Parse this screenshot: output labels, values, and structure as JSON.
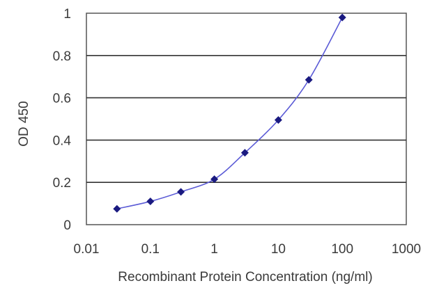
{
  "chart_data": {
    "type": "line",
    "title": "",
    "xlabel": "Recombinant Protein Concentration (ng/ml)",
    "ylabel": "OD 450",
    "x_scale": "log",
    "xlim": [
      0.01,
      1000
    ],
    "ylim": [
      0,
      1
    ],
    "x_ticks": [
      "0.01",
      "0.1",
      "1",
      "10",
      "100",
      "1000"
    ],
    "y_ticks": [
      "0",
      "0.2",
      "0.4",
      "0.6",
      "0.8",
      "1"
    ],
    "grid": "horizontal",
    "legend": "none",
    "series": [
      {
        "x": [
          0.03,
          0.1,
          0.3,
          1,
          3,
          10,
          30,
          100
        ],
        "y": [
          0.075,
          0.11,
          0.155,
          0.215,
          0.34,
          0.495,
          0.685,
          0.98
        ]
      }
    ],
    "colors": {
      "line": "#5b5bd6",
      "marker": "#1a1a80",
      "grid": "#333333",
      "axis": "#555555"
    }
  }
}
